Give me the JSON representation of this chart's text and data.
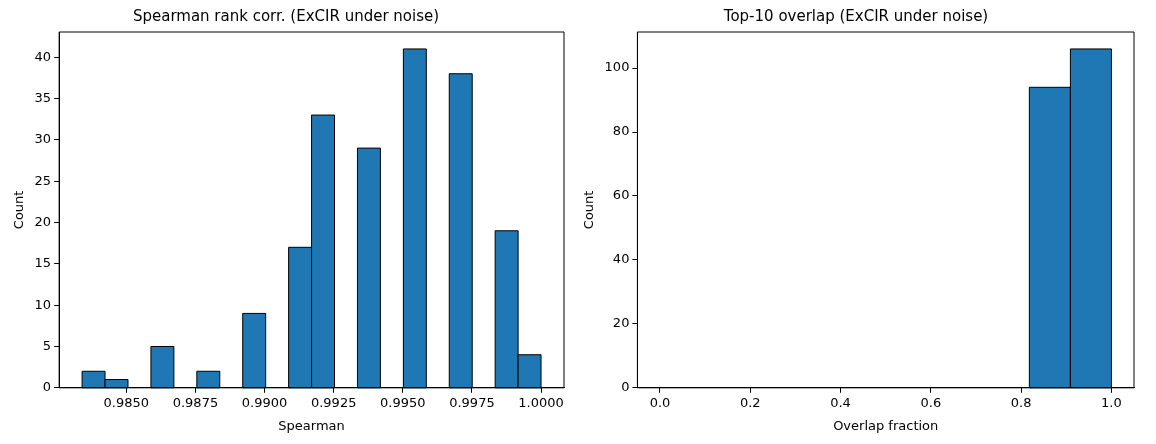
{
  "chart_data": [
    {
      "type": "histogram",
      "title": "Spearman rank corr. (ExCIR under noise)",
      "xlabel": "Spearman",
      "ylabel": "Count",
      "color": "#1f77b4",
      "bins": [
        0.9834,
        0.98423,
        0.98506,
        0.98589,
        0.98672,
        0.98755,
        0.98838,
        0.98921,
        0.99004,
        0.99087,
        0.9917,
        0.99253,
        0.99336,
        0.99419,
        0.99502,
        0.99585,
        0.99668,
        0.99751,
        0.99834,
        0.99917,
        1.0
      ],
      "values": [
        2,
        1,
        0,
        5,
        0,
        2,
        0,
        9,
        0,
        17,
        33,
        0,
        29,
        0,
        41,
        0,
        38,
        0,
        19,
        4
      ],
      "xlim": [
        0.98257,
        1.00083
      ],
      "ylim": [
        0,
        43.05
      ],
      "xticks": [
        {
          "value": 0.985,
          "label": "0.9850"
        },
        {
          "value": 0.9875,
          "label": "0.9875"
        },
        {
          "value": 0.99,
          "label": "0.9900"
        },
        {
          "value": 0.9925,
          "label": "0.9925"
        },
        {
          "value": 0.995,
          "label": "0.9950"
        },
        {
          "value": 0.9975,
          "label": "0.9975"
        },
        {
          "value": 1.0,
          "label": "1.0000"
        }
      ],
      "yticks": [
        0,
        5,
        10,
        15,
        20,
        25,
        30,
        35,
        40
      ],
      "grid": false,
      "legend": false
    },
    {
      "type": "histogram",
      "title": "Top-10 overlap (ExCIR under noise)",
      "xlabel": "Overlap fraction",
      "ylabel": "Count",
      "color": "#1f77b4",
      "bins": [
        0.8182,
        0.9091,
        1.0
      ],
      "values": [
        94,
        106
      ],
      "xlim": [
        -0.05,
        1.05
      ],
      "ylim": [
        0,
        111.3
      ],
      "xticks": [
        {
          "value": 0,
          "label": "0.0"
        },
        {
          "value": 0.2,
          "label": "0.2"
        },
        {
          "value": 0.4,
          "label": "0.4"
        },
        {
          "value": 0.6,
          "label": "0.6"
        },
        {
          "value": 0.8,
          "label": "0.8"
        },
        {
          "value": 1.0,
          "label": "1.0"
        }
      ],
      "yticks": [
        0,
        20,
        40,
        60,
        80,
        100
      ],
      "grid": false,
      "legend": false
    }
  ]
}
